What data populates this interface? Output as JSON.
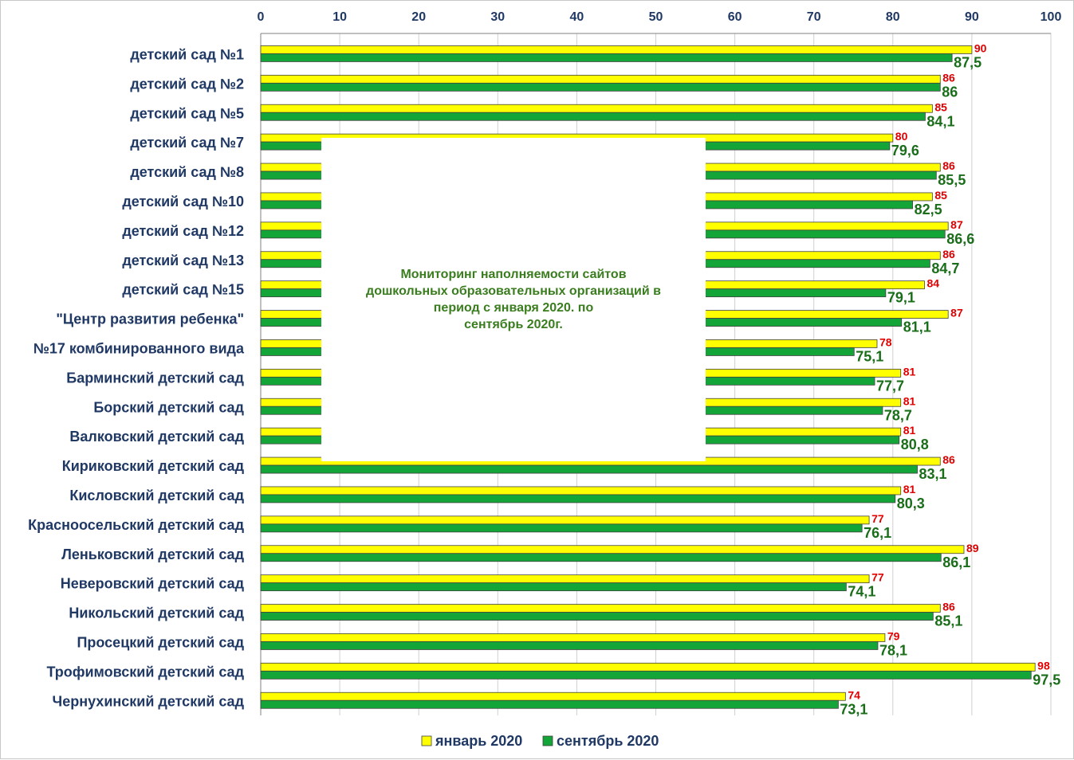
{
  "chart_data": {
    "type": "bar",
    "orientation": "horizontal",
    "categories": [
      "детский сад №1",
      "детский сад №2",
      "детский сад №5",
      "детский сад №7",
      "детский сад №8",
      "детский сад №10",
      "детский сад №12",
      "детский сад №13",
      "детский сад №15",
      "\"Центр развития ребенка\"",
      "№17 комбинированного вида",
      "Барминский детский сад",
      "Борский детский сад",
      "Валковский детский сад",
      "Кириковский детский сад",
      "Кисловский детский сад",
      "Красноосельский детский сад",
      "Леньковский детский сад",
      "Неверовский детский сад",
      "Никольский детский сад",
      "Просецкий детский сад",
      "Трофимовский детский сад",
      "Чернухинский детский сад"
    ],
    "series": [
      {
        "name": "январь 2020",
        "color": "#ffff00",
        "label_color": "#e00000",
        "values": [
          90,
          86,
          85,
          80,
          86,
          85,
          87,
          86,
          84,
          87,
          78,
          81,
          81,
          81,
          86,
          81,
          77,
          89,
          77,
          86,
          79,
          98,
          74
        ],
        "labels": [
          "90",
          "86",
          "85",
          "80",
          "86",
          "85",
          "87",
          "86",
          "84",
          "87",
          "78",
          "81",
          "81",
          "81",
          "86",
          "81",
          "77",
          "89",
          "77",
          "86",
          "79",
          "98",
          "74"
        ]
      },
      {
        "name": "сентябрь 2020",
        "color": "#13a538",
        "label_color": "#1a6e1a",
        "values": [
          87.5,
          86,
          84.1,
          79.6,
          85.5,
          82.5,
          86.6,
          84.7,
          79.1,
          81.1,
          75.1,
          77.7,
          78.7,
          80.8,
          83.1,
          80.3,
          76.1,
          86.1,
          74.1,
          85.1,
          78.1,
          97.5,
          73.1
        ],
        "labels": [
          "87,5",
          "86",
          "84,1",
          "79,6",
          "85,5",
          "82,5",
          "86,6",
          "84,7",
          "79,1",
          "81,1",
          "75,1",
          "77,7",
          "78,7",
          "80,8",
          "83,1",
          "80,3",
          "76,1",
          "86,1",
          "74,1",
          "85,1",
          "78,1",
          "97,5",
          "73,1"
        ]
      }
    ],
    "x_ticks": [
      "0",
      "10",
      "20",
      "30",
      "40",
      "50",
      "60",
      "70",
      "80",
      "90",
      "100"
    ],
    "xlim": [
      0,
      100
    ],
    "xaxis_position": "top",
    "grid": true,
    "legend_position": "bottom",
    "annotation": "Мониторинг наполняемости сайтов\nдошкольных образовательных организаций в\nпериод с января 2020. по\nсентябрь 2020г."
  }
}
